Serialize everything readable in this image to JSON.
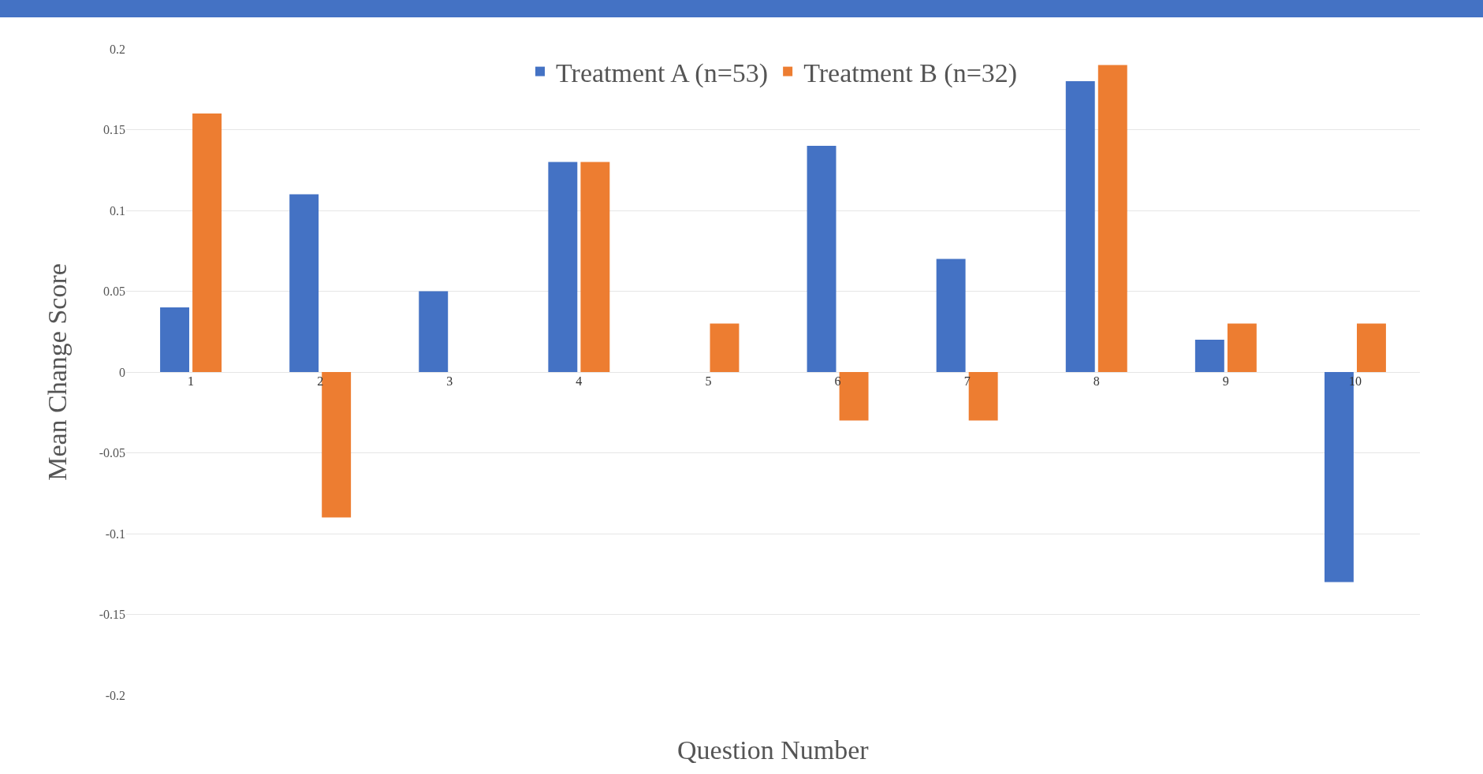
{
  "chart_data": {
    "type": "bar",
    "xlabel": "Question Number",
    "ylabel": "Mean Change Score",
    "categories": [
      "1",
      "2",
      "3",
      "4",
      "5",
      "6",
      "7",
      "8",
      "9",
      "10"
    ],
    "series": [
      {
        "name": "Treatment A (n=53)",
        "color": "#4472c4",
        "values": [
          0.04,
          0.11,
          0.05,
          0.13,
          0,
          0.14,
          0.07,
          0.18,
          0.02,
          -0.13
        ]
      },
      {
        "name": "Treatment B (n=32)",
        "color": "#ed7d31",
        "values": [
          0.16,
          -0.09,
          0,
          0.13,
          0.03,
          -0.03,
          -0.03,
          0.19,
          0.03,
          0.03
        ]
      }
    ],
    "ylim": [
      -0.2,
      0.2
    ],
    "yticks": [
      -0.2,
      -0.15,
      -0.1,
      -0.05,
      0,
      0.05,
      0.1,
      0.15,
      0.2
    ],
    "grid": "y",
    "legend": "top"
  }
}
